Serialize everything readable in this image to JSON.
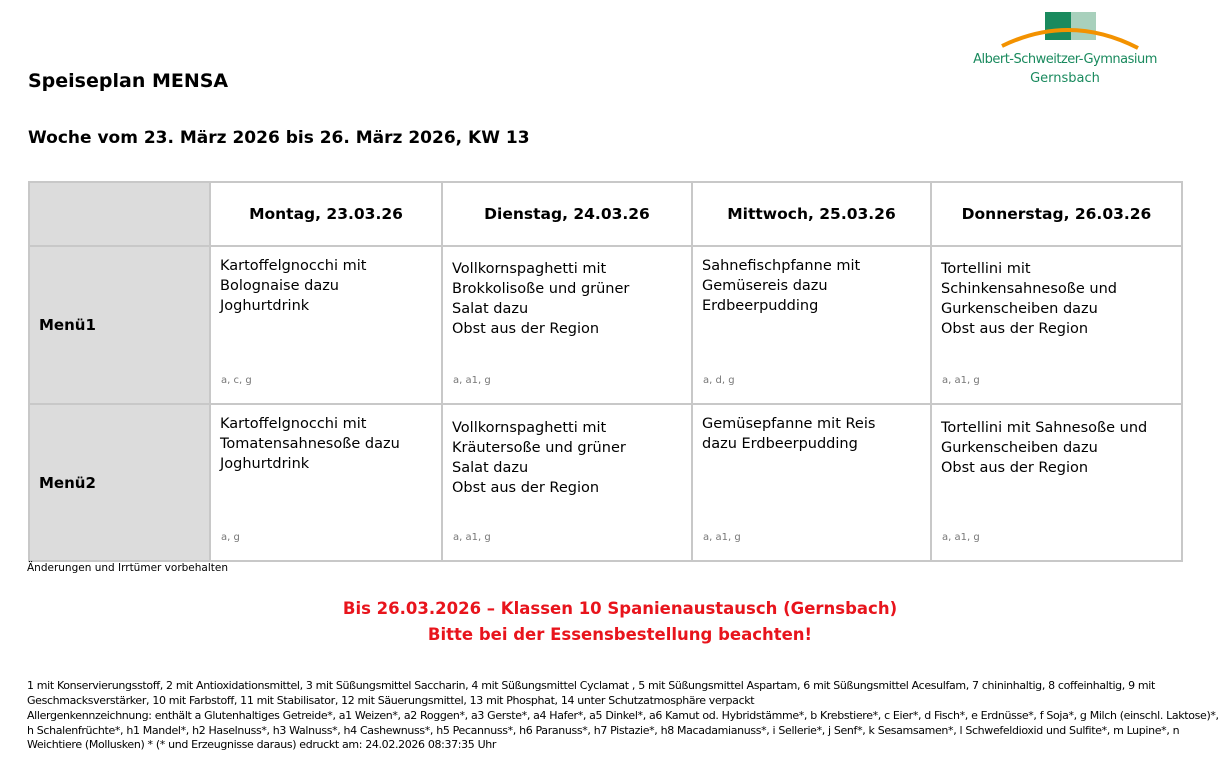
{
  "logo": {
    "text1": "Albert-Schweitzer-Gymnasium",
    "text2": "Gernsbach",
    "colors": {
      "green": "#1a8a5e",
      "light_green": "#a8d0bc",
      "orange": "#f39200"
    }
  },
  "title": "Speiseplan MENSA",
  "week": "Woche vom 23. März 2026 bis 26. März 2026, KW 13",
  "days": [
    "Montag, 23.03.26",
    "Dienstag, 24.03.26",
    "Mittwoch, 25.03.26",
    "Donnerstag, 26.03.26"
  ],
  "menus": [
    {
      "label": "Menü1",
      "items": [
        {
          "lines": [
            "Kartoffelgnocchi mit",
            "Bolognaise dazu",
            "Joghurtdrink"
          ],
          "codes": "a, c, g"
        },
        {
          "lines": [
            "Vollkornspaghetti mit",
            "Brokkolisoße und grüner",
            "Salat dazu",
            "Obst aus der Region"
          ],
          "codes": "a, a1, g"
        },
        {
          "lines": [
            "Sahnefischpfanne mit",
            "Gemüsereis dazu",
            "Erdbeerpudding"
          ],
          "codes": "a, d, g"
        },
        {
          "lines": [
            "Tortellini mit",
            "Schinkensahnesoße und",
            "Gurkenscheiben dazu",
            "Obst aus der Region"
          ],
          "codes": "a, a1, g"
        }
      ]
    },
    {
      "label": "Menü2",
      "items": [
        {
          "lines": [
            "Kartoffelgnocchi mit",
            "Tomatensahnesoße dazu",
            "Joghurtdrink"
          ],
          "codes": "a, g"
        },
        {
          "lines": [
            "Vollkornspaghetti mit",
            "Kräutersoße und grüner",
            "Salat dazu",
            "Obst aus der Region"
          ],
          "codes": "a, a1, g"
        },
        {
          "lines": [
            "Gemüsepfanne mit Reis",
            "dazu Erdbeerpudding"
          ],
          "codes": "a, a1, g"
        },
        {
          "lines": [
            "Tortellini mit Sahnesoße und",
            "Gurkenscheiben dazu",
            "Obst aus der Region"
          ],
          "codes": "a, a1, g"
        }
      ]
    }
  ],
  "note": "Änderungen und Irrtümer vorbehalten",
  "alert": {
    "line1": "Bis 26.03.2026 – Klassen 10 Spanienaustausch (Gernsbach)",
    "line2": "Bitte bei der Essensbestellung beachten!",
    "color": "#e8141c"
  },
  "additives": "1 mit Konservierungsstoff, 2 mit Antioxidationsmittel, 3 mit Süßungsmittel Saccharin, 4 mit Süßungsmittel Cyclamat , 5 mit Süßungsmittel Aspartam, 6 mit Süßungsmittel Acesulfam, 7 chininhaltig, 8 coffeinhaltig, 9 mit Geschmacksverstärker, 10 mit Farbstoff, 11 mit Stabilisator, 12 mit Säuerungsmittel, 13 mit Phosphat, 14 unter Schutzatmosphäre verpackt",
  "allergens": "Allergenkennzeichnung: enthält a Glutenhaltiges Getreide*, a1 Weizen*, a2 Roggen*, a3 Gerste*, a4 Hafer*, a5 Dinkel*, a6 Kamut od. Hybridstämme*, b Krebstiere*, c Eier*, d Fisch*, e Erdnüsse*, f Soja*, g Milch (einschl. Laktose)*, h Schalenfrüchte*, h1 Mandel*, h2 Haselnuss*, h3 Walnuss*, h4 Cashewnuss*, h5 Pecannuss*, h6 Paranuss*, h7 Pistazie*, h8 Macadamianuss*, i Sellerie*, j Senf*, k Sesamsamen*, l Schwefeldioxid und Sulfite*, m Lupine*, n Weichtiere (Mollusken) * (* und Erzeugnisse daraus) edruckt am: 24.02.2026 08:37:35 Uhr"
}
